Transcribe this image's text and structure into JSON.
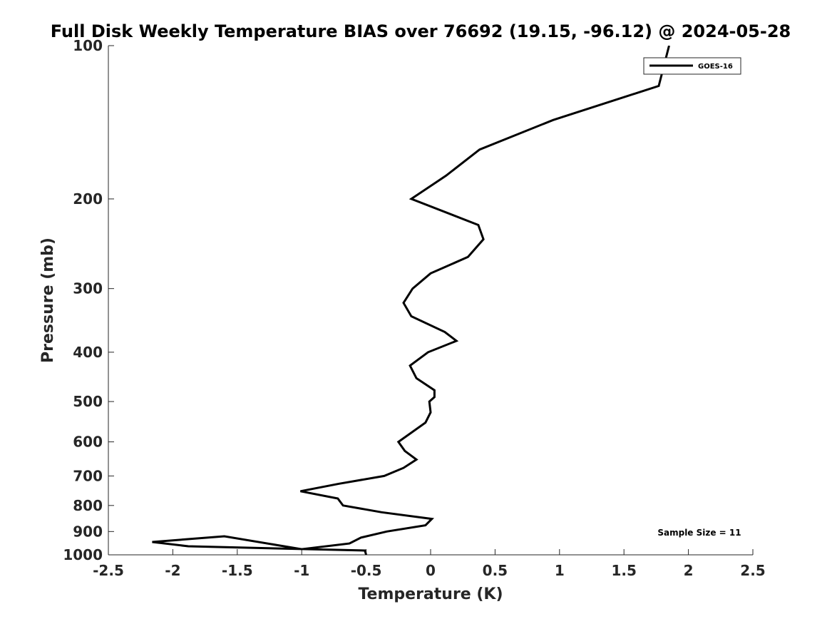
{
  "chart_data": {
    "type": "line",
    "title": "Full Disk Weekly Temperature BIAS over 76692 (19.15, -96.12) @ 2024-05-28",
    "xlabel": "Temperature (K)",
    "ylabel": "Pressure (mb)",
    "xlim": [
      -2.5,
      2.5
    ],
    "ylim": [
      100,
      1000
    ],
    "y_scale": "log",
    "y_reversed": true,
    "grid": false,
    "legend_position": "top-right",
    "x_ticks": [
      -2.5,
      -2,
      -1.5,
      -1,
      -0.5,
      0,
      0.5,
      1,
      1.5,
      2,
      2.5
    ],
    "x_tick_labels": [
      "-2.5",
      "-2",
      "-1.5",
      "-1",
      "-0.5",
      "0",
      "0.5",
      "1",
      "1.5",
      "2",
      "2.5"
    ],
    "y_ticks": [
      100,
      200,
      300,
      400,
      500,
      600,
      700,
      800,
      900,
      1000
    ],
    "y_tick_labels": [
      "100",
      "200",
      "300",
      "400",
      "500",
      "600",
      "700",
      "800",
      "900",
      "1000"
    ],
    "annotation": "Sample Size = 11",
    "series": [
      {
        "name": "GOES-16",
        "color": "#000000",
        "points": [
          {
            "x": 1.85,
            "p": 100
          },
          {
            "x": 1.77,
            "p": 120
          },
          {
            "x": 0.95,
            "p": 140
          },
          {
            "x": 0.38,
            "p": 160
          },
          {
            "x": 0.12,
            "p": 180
          },
          {
            "x": -0.15,
            "p": 200
          },
          {
            "x": 0.37,
            "p": 225
          },
          {
            "x": 0.41,
            "p": 240
          },
          {
            "x": 0.29,
            "p": 260
          },
          {
            "x": 0.0,
            "p": 280
          },
          {
            "x": -0.14,
            "p": 300
          },
          {
            "x": -0.21,
            "p": 320
          },
          {
            "x": -0.15,
            "p": 340
          },
          {
            "x": 0.11,
            "p": 365
          },
          {
            "x": 0.2,
            "p": 380
          },
          {
            "x": -0.02,
            "p": 400
          },
          {
            "x": -0.16,
            "p": 425
          },
          {
            "x": -0.11,
            "p": 450
          },
          {
            "x": 0.03,
            "p": 475
          },
          {
            "x": 0.03,
            "p": 490
          },
          {
            "x": -0.01,
            "p": 500
          },
          {
            "x": 0.0,
            "p": 525
          },
          {
            "x": -0.04,
            "p": 550
          },
          {
            "x": -0.25,
            "p": 600
          },
          {
            "x": -0.2,
            "p": 625
          },
          {
            "x": -0.11,
            "p": 650
          },
          {
            "x": -0.21,
            "p": 675
          },
          {
            "x": -0.36,
            "p": 700
          },
          {
            "x": -0.71,
            "p": 725
          },
          {
            "x": -1.01,
            "p": 750
          },
          {
            "x": -0.72,
            "p": 775
          },
          {
            "x": -0.68,
            "p": 800
          },
          {
            "x": -0.38,
            "p": 825
          },
          {
            "x": 0.01,
            "p": 850
          },
          {
            "x": -0.04,
            "p": 875
          },
          {
            "x": -0.34,
            "p": 900
          },
          {
            "x": -0.54,
            "p": 925
          },
          {
            "x": -0.63,
            "p": 950
          },
          {
            "x": -1.0,
            "p": 975
          },
          {
            "x": -1.6,
            "p": 1000
          },
          {
            "x": -2.16,
            "p": 1000
          },
          {
            "x": -1.88,
            "p": 1000
          },
          {
            "x": -0.51,
            "p": 1000
          },
          {
            "x": -0.5,
            "p": 1000
          }
        ]
      }
    ]
  }
}
